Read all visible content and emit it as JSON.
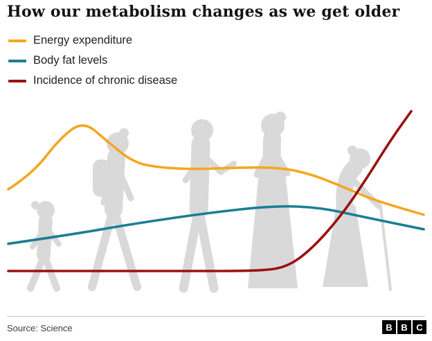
{
  "header": {
    "title": "How our metabolism changes as we get older"
  },
  "legend": {
    "items": [
      {
        "label": "Energy expenditure",
        "color": "#F5A623"
      },
      {
        "label": "Body fat levels",
        "color": "#1A7F93"
      },
      {
        "label": "Incidence of chronic disease",
        "color": "#9A1212"
      }
    ]
  },
  "footer": {
    "source": "Source: Science",
    "logo_letters": [
      "B",
      "B",
      "C"
    ]
  },
  "chart_data": {
    "type": "line",
    "title": "How our metabolism changes as we get older",
    "xlabel": "",
    "ylabel": "",
    "axes_shown": false,
    "grid": false,
    "legend_position": "top-left",
    "x_meaning": "life course from early childhood to old age (0-100, no numeric axis shown)",
    "y_meaning": "relative level (0-100, no numeric axis shown)",
    "background_figures": [
      "child",
      "teenager-with-backpack",
      "adult-gesturing",
      "adult-woman-long-dress",
      "elderly-woman-with-cane"
    ],
    "series": [
      {
        "name": "Energy expenditure",
        "color": "#F5A623",
        "x": [
          0,
          6,
          12,
          18,
          24,
          30,
          36,
          45,
          55,
          65,
          72,
          80,
          88,
          100
        ],
        "y": [
          53,
          62,
          80,
          91,
          79,
          68,
          65,
          64,
          65,
          65,
          62,
          55,
          47,
          39
        ]
      },
      {
        "name": "Body fat levels",
        "color": "#1A7F93",
        "x": [
          0,
          15,
          30,
          48,
          64,
          75,
          85,
          100
        ],
        "y": [
          23,
          28,
          34,
          40,
          44,
          43,
          38,
          31
        ]
      },
      {
        "name": "Incidence of chronic disease",
        "color": "#9A1212",
        "x": [
          0,
          40,
          60,
          67,
          73,
          80,
          86,
          92,
          97
        ],
        "y": [
          8,
          8,
          8,
          10,
          20,
          38,
          58,
          80,
          96
        ]
      }
    ]
  }
}
